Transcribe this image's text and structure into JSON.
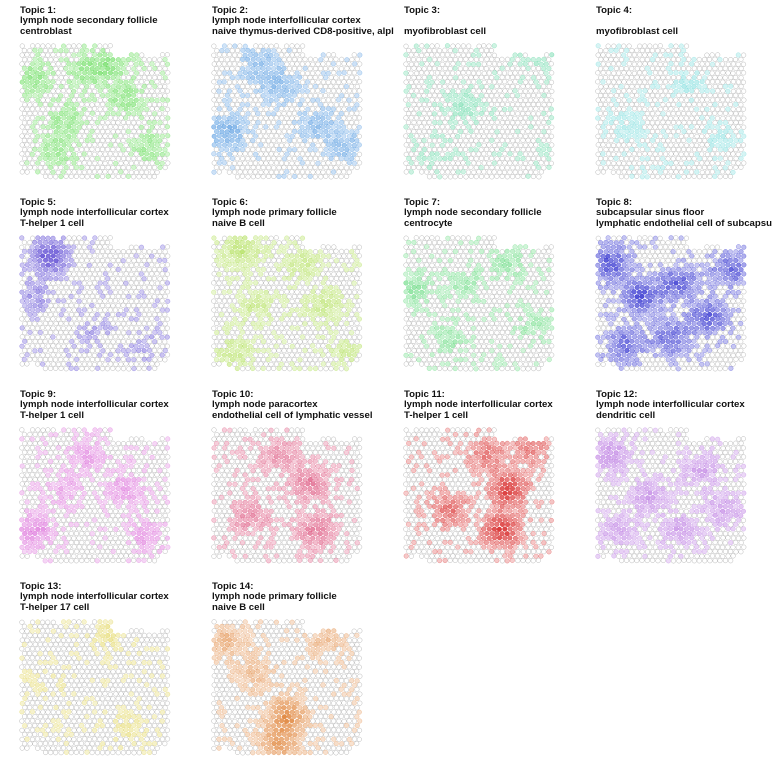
{
  "figure": {
    "description_type": "grid of spatial topic maps",
    "columns": 4
  },
  "chart_data": [
    {
      "type": "heatmap",
      "title_lines": [
        "Topic 1:",
        "lymph node secondary follicle",
        "centroblast"
      ],
      "color": "#3ad22a",
      "hotspots": [
        [
          0.1,
          0.25,
          0.35
        ],
        [
          0.3,
          0.55,
          0.3
        ],
        [
          0.45,
          0.2,
          0.3
        ],
        [
          0.7,
          0.4,
          0.3
        ],
        [
          0.25,
          0.8,
          0.25
        ],
        [
          0.85,
          0.75,
          0.25
        ],
        [
          0.6,
          0.15,
          0.3
        ]
      ]
    },
    {
      "type": "heatmap",
      "title_lines": [
        "Topic 2:",
        "lymph node interfollicular cortex",
        "naive thymus-derived CD8-positive, alpl"
      ],
      "color": "#2e83d9",
      "hotspots": [
        [
          0.1,
          0.65,
          0.45
        ],
        [
          0.45,
          0.3,
          0.35
        ],
        [
          0.3,
          0.15,
          0.3
        ],
        [
          0.7,
          0.6,
          0.3
        ],
        [
          0.9,
          0.75,
          0.3
        ]
      ]
    },
    {
      "type": "heatmap",
      "title_lines": [
        "Topic 3:",
        "",
        "myofibroblast cell"
      ],
      "color": "#2ec985",
      "hotspots": [
        [
          0.4,
          0.45,
          0.25
        ],
        [
          0.9,
          0.05,
          0.25
        ],
        [
          0.2,
          0.8,
          0.15
        ]
      ]
    },
    {
      "type": "heatmap",
      "title_lines": [
        "Topic 4:",
        "",
        "myofibroblast cell"
      ],
      "color": "#4ccfcf",
      "hotspots": [
        [
          0.6,
          0.3,
          0.2
        ],
        [
          0.2,
          0.6,
          0.15
        ],
        [
          0.8,
          0.7,
          0.15
        ]
      ]
    },
    {
      "type": "heatmap",
      "title_lines": [
        "Topic 5:",
        "lymph node interfollicular cortex",
        "T-helper 1 cell"
      ],
      "color": "#3a22c9",
      "hotspots": [
        [
          0.2,
          0.15,
          0.65
        ],
        [
          0.1,
          0.45,
          0.25
        ],
        [
          0.5,
          0.7,
          0.15
        ],
        [
          0.85,
          0.8,
          0.15
        ]
      ]
    },
    {
      "type": "heatmap",
      "title_lines": [
        "Topic 6:",
        "lymph node primary follicle",
        "naive B cell"
      ],
      "color": "#9ad62a",
      "hotspots": [
        [
          0.2,
          0.1,
          0.45
        ],
        [
          0.6,
          0.2,
          0.3
        ],
        [
          0.3,
          0.5,
          0.3
        ],
        [
          0.75,
          0.5,
          0.3
        ],
        [
          0.15,
          0.85,
          0.3
        ],
        [
          0.9,
          0.85,
          0.25
        ]
      ]
    },
    {
      "type": "heatmap",
      "title_lines": [
        "Topic 7:",
        "lymph node secondary follicle",
        "centrocyte"
      ],
      "color": "#39cf5a",
      "hotspots": [
        [
          0.05,
          0.4,
          0.35
        ],
        [
          0.4,
          0.35,
          0.25
        ],
        [
          0.7,
          0.2,
          0.25
        ],
        [
          0.3,
          0.75,
          0.25
        ],
        [
          0.85,
          0.65,
          0.2
        ]
      ]
    },
    {
      "type": "heatmap",
      "title_lines": [
        "Topic 8:",
        "subcapsular sinus floor",
        "lymphatic endothelial cell of subcapsu"
      ],
      "color": "#1515c8",
      "hotspots": [
        [
          0.1,
          0.2,
          0.6
        ],
        [
          0.3,
          0.45,
          0.6
        ],
        [
          0.55,
          0.35,
          0.55
        ],
        [
          0.75,
          0.6,
          0.55
        ],
        [
          0.2,
          0.8,
          0.5
        ],
        [
          0.9,
          0.25,
          0.5
        ],
        [
          0.5,
          0.75,
          0.5
        ]
      ]
    },
    {
      "type": "heatmap",
      "title_lines": [
        "Topic 9:",
        "lymph node interfollicular cortex",
        "T-helper 1 cell"
      ],
      "color": "#d34ad0",
      "hotspots": [
        [
          0.1,
          0.75,
          0.45
        ],
        [
          0.45,
          0.2,
          0.3
        ],
        [
          0.7,
          0.45,
          0.3
        ],
        [
          0.85,
          0.8,
          0.3
        ],
        [
          0.3,
          0.45,
          0.25
        ]
      ]
    },
    {
      "type": "heatmap",
      "title_lines": [
        "Topic 10:",
        "lymph node paracortex",
        "endothelial cell of lymphatic vessel"
      ],
      "color": "#d42a5e",
      "hotspots": [
        [
          0.65,
          0.4,
          0.45
        ],
        [
          0.7,
          0.75,
          0.45
        ],
        [
          0.25,
          0.65,
          0.35
        ],
        [
          0.45,
          0.2,
          0.3
        ]
      ]
    },
    {
      "type": "heatmap",
      "title_lines": [
        "Topic 11:",
        "lymph node interfollicular cortex",
        "T-helper 1 cell"
      ],
      "color": "#d41515",
      "hotspots": [
        [
          0.7,
          0.45,
          0.75
        ],
        [
          0.65,
          0.75,
          0.7
        ],
        [
          0.3,
          0.6,
          0.45
        ],
        [
          0.55,
          0.2,
          0.4
        ],
        [
          0.85,
          0.15,
          0.35
        ]
      ]
    },
    {
      "type": "heatmap",
      "title_lines": [
        "Topic 12:",
        "lymph node interfollicular cortex",
        "dendritic cell"
      ],
      "color": "#a855d9",
      "hotspots": [
        [
          0.1,
          0.2,
          0.45
        ],
        [
          0.35,
          0.5,
          0.4
        ],
        [
          0.7,
          0.3,
          0.35
        ],
        [
          0.55,
          0.75,
          0.35
        ],
        [
          0.85,
          0.6,
          0.35
        ],
        [
          0.15,
          0.75,
          0.3
        ]
      ]
    },
    {
      "type": "heatmap",
      "title_lines": [
        "Topic 13:",
        "lymph node interfollicular cortex",
        "T-helper 17 cell"
      ],
      "color": "#d8c82a",
      "hotspots": [
        [
          0.6,
          0.1,
          0.25
        ],
        [
          0.7,
          0.8,
          0.2
        ],
        [
          0.2,
          0.5,
          0.15
        ]
      ]
    },
    {
      "type": "heatmap",
      "title_lines": [
        "Topic 14:",
        "lymph node primary follicle",
        "naive B cell"
      ],
      "color": "#dd7a2a",
      "hotspots": [
        [
          0.5,
          0.7,
          0.7
        ],
        [
          0.45,
          0.9,
          0.6
        ],
        [
          0.1,
          0.15,
          0.35
        ],
        [
          0.75,
          0.15,
          0.3
        ],
        [
          0.3,
          0.4,
          0.3
        ]
      ]
    }
  ]
}
